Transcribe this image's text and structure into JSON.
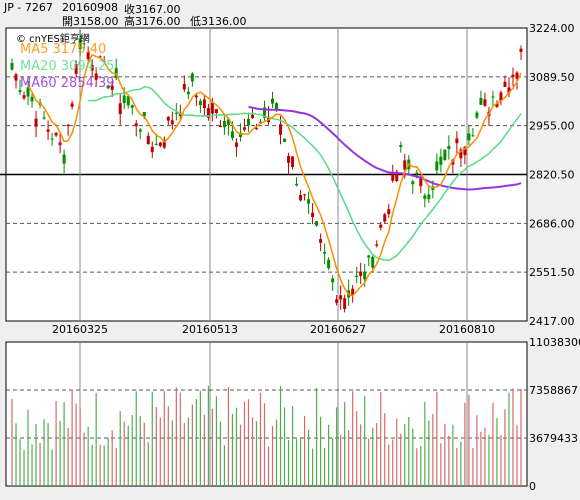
{
  "header": {
    "symbol": "JP - 7267",
    "date": "20160908",
    "close_label": "收3167.00",
    "open_label": "開3158.00",
    "high_label": "高3176.00",
    "low_label": "低3136.00"
  },
  "brand": "© cnYES鉅亨網",
  "colors": {
    "up": "#c00000",
    "down": "#009000",
    "ma5": "#ff8c00",
    "ma20": "#55dd88",
    "ma60": "#9933dd",
    "vol_up": "#d46a6a",
    "vol_down": "#4faf4f"
  },
  "chart_data": [
    {
      "type": "candlestick",
      "legend": [
        {
          "label": "MA5 3175.40",
          "color": "#ff8c00"
        },
        {
          "label": "MA20 3094.25",
          "color": "#55dd88"
        },
        {
          "label": "MA60 2854.39",
          "color": "#9933dd"
        }
      ],
      "ylim": [
        2417.0,
        3224.0
      ],
      "y_ticks": [
        "3224.00",
        "3089.50",
        "2955.00",
        "2820.50",
        "2686.00",
        "2551.50",
        "2417.00"
      ],
      "x_ticks": [
        "20160325",
        "20160513",
        "20160627",
        "20160810"
      ],
      "reference_line": 2820.5,
      "ohlc_anchor_points": [
        {
          "x": "start",
          "close": 3110
        },
        {
          "x": "~20160310",
          "close": 2880
        },
        {
          "x": "~20160317",
          "close": 3190
        },
        {
          "x": "20160325",
          "close": 3100
        },
        {
          "x": "~20160410",
          "close": 2900
        },
        {
          "x": "~20160428",
          "close": 3060
        },
        {
          "x": "20160513",
          "close": 2930
        },
        {
          "x": "~20160525",
          "close": 3000
        },
        {
          "x": "~20160605",
          "close": 2780
        },
        {
          "x": "~20160620",
          "close": 2520
        },
        {
          "x": "20160627",
          "close": 2490
        },
        {
          "x": "~20160705",
          "close": 2560
        },
        {
          "x": "~20160720",
          "close": 2870
        },
        {
          "x": "~20160728",
          "close": 2770
        },
        {
          "x": "20160810",
          "close": 2960
        },
        {
          "x": "~20160825",
          "close": 3120
        },
        {
          "x": "20160908",
          "open": 3158.0,
          "high": 3176.0,
          "low": 3136.0,
          "close": 3167.0
        }
      ],
      "series": [
        {
          "name": "MA5",
          "last": 3175.4
        },
        {
          "name": "MA20",
          "last": 3094.25
        },
        {
          "name": "MA60",
          "last": 2854.39
        }
      ]
    },
    {
      "type": "bar",
      "ylim": [
        0,
        11038300
      ],
      "y_ticks": [
        "11038300",
        "7358867",
        "3679433",
        "0"
      ]
    }
  ]
}
